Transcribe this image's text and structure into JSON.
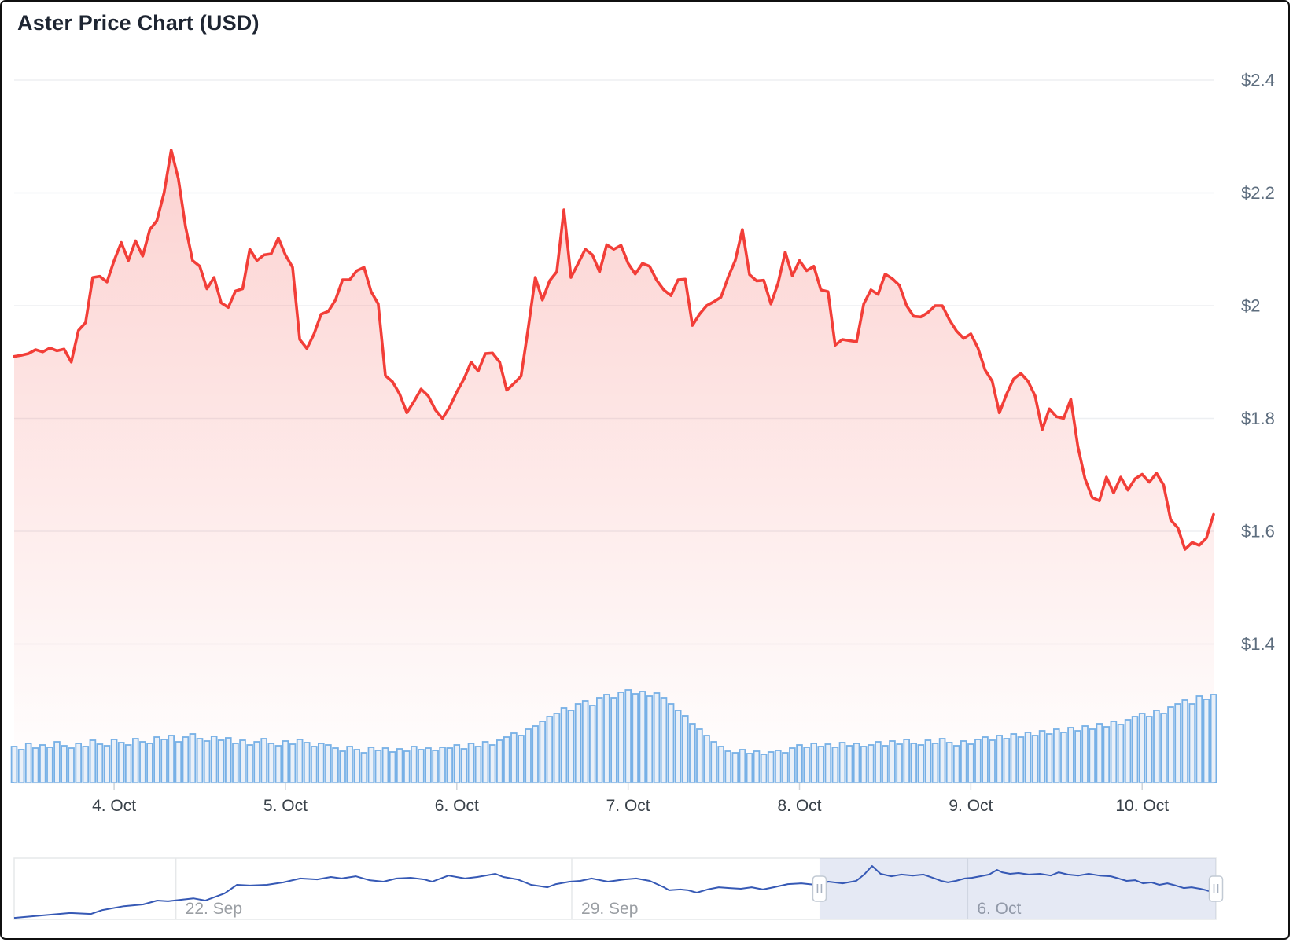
{
  "title": "Aster Price Chart (USD)",
  "colors": {
    "title_color": "#1e2532",
    "price_line": "#f23e38",
    "price_fill_top": "rgba(242,62,56,0.26)",
    "price_fill_bottom": "rgba(242,62,56,0)",
    "grid": "#edeff2",
    "axis_line": "#e7e9eb",
    "tick_mark": "#ced3d8",
    "x_label": "#394149",
    "y_label": "#5d6d7e",
    "volume_stroke": "#77b0e6",
    "volume_fill": "#eaf0f8",
    "nav_line": "#3659b5",
    "nav_mask": "rgba(101,125,189,0.17)",
    "nav_outline": "#e6e8ea",
    "nav_label": "#9b9fa4",
    "handle_bg": "#ffffff",
    "handle_border": "#c2cad4",
    "handle_glyph": "#a6b0bf"
  },
  "chart_data": [
    {
      "type": "area",
      "name": "aster-price-usd",
      "x_unit": "hour",
      "ylim": [
        1.4,
        2.4
      ],
      "y_ticks": [
        {
          "value": 2.4,
          "label": "$2.4"
        },
        {
          "value": 2.2,
          "label": "$2.2"
        },
        {
          "value": 2.0,
          "label": "$2"
        },
        {
          "value": 1.8,
          "label": "$1.8"
        },
        {
          "value": 1.6,
          "label": "$1.6"
        },
        {
          "value": 1.4,
          "label": "$1.4"
        }
      ],
      "x_ticks": [
        {
          "hour": 14,
          "label": "4. Oct"
        },
        {
          "hour": 38,
          "label": "5. Oct"
        },
        {
          "hour": 62,
          "label": "6. Oct"
        },
        {
          "hour": 86,
          "label": "7. Oct"
        },
        {
          "hour": 110,
          "label": "8. Oct"
        },
        {
          "hour": 134,
          "label": "9. Oct"
        },
        {
          "hour": 158,
          "label": "10. Oct"
        }
      ],
      "values": [
        1.91,
        1.912,
        1.915,
        1.922,
        1.918,
        1.925,
        1.92,
        1.923,
        1.9,
        1.956,
        1.97,
        2.05,
        2.052,
        2.042,
        2.08,
        2.112,
        2.08,
        2.115,
        2.088,
        2.135,
        2.151,
        2.2,
        2.276,
        2.225,
        2.14,
        2.08,
        2.07,
        2.03,
        2.05,
        2.005,
        1.997,
        2.026,
        2.03,
        2.1,
        2.08,
        2.09,
        2.092,
        2.12,
        2.09,
        2.068,
        1.94,
        1.924,
        1.95,
        1.985,
        1.99,
        2.01,
        2.046,
        2.046,
        2.062,
        2.068,
        2.025,
        2.003,
        1.876,
        1.865,
        1.843,
        1.81,
        1.83,
        1.852,
        1.84,
        1.815,
        1.8,
        1.82,
        1.847,
        1.87,
        1.9,
        1.884,
        1.915,
        1.916,
        1.9,
        1.85,
        1.862,
        1.875,
        1.96,
        2.05,
        2.01,
        2.044,
        2.06,
        2.17,
        2.05,
        2.075,
        2.1,
        2.09,
        2.06,
        2.108,
        2.1,
        2.107,
        2.075,
        2.056,
        2.075,
        2.07,
        2.045,
        2.028,
        2.018,
        2.046,
        2.047,
        1.965,
        1.985,
        2.0,
        2.007,
        2.015,
        2.05,
        2.08,
        2.135,
        2.055,
        2.044,
        2.045,
        2.003,
        2.04,
        2.095,
        2.053,
        2.08,
        2.062,
        2.07,
        2.028,
        2.025,
        1.93,
        1.94,
        1.938,
        1.936,
        2.003,
        2.028,
        2.02,
        2.056,
        2.048,
        2.036,
        2.0,
        1.981,
        1.98,
        1.988,
        2.0,
        2.0,
        1.975,
        1.955,
        1.942,
        1.95,
        1.925,
        1.886,
        1.866,
        1.81,
        1.843,
        1.87,
        1.88,
        1.866,
        1.84,
        1.78,
        1.817,
        1.803,
        1.8,
        1.834,
        1.75,
        1.693,
        1.66,
        1.654,
        1.696,
        1.668,
        1.696,
        1.673,
        1.693,
        1.701,
        1.687,
        1.703,
        1.682,
        1.62,
        1.606,
        1.568,
        1.58,
        1.575,
        1.588,
        1.63
      ]
    },
    {
      "type": "bar",
      "name": "aster-volume",
      "note": "relative bar heights, same hourly x positions as price series",
      "heights": [
        46,
        42,
        50,
        44,
        48,
        45,
        52,
        47,
        44,
        50,
        46,
        54,
        49,
        47,
        55,
        51,
        48,
        56,
        52,
        50,
        58,
        55,
        60,
        52,
        58,
        62,
        56,
        53,
        59,
        54,
        57,
        50,
        54,
        48,
        52,
        56,
        50,
        47,
        53,
        49,
        55,
        51,
        46,
        50,
        48,
        44,
        40,
        46,
        42,
        38,
        45,
        41,
        44,
        39,
        43,
        40,
        46,
        42,
        44,
        41,
        45,
        44,
        48,
        43,
        50,
        46,
        52,
        48,
        54,
        58,
        63,
        60,
        68,
        72,
        78,
        84,
        88,
        95,
        92,
        100,
        104,
        98,
        108,
        112,
        108,
        115,
        118,
        113,
        116,
        110,
        114,
        108,
        100,
        92,
        85,
        75,
        68,
        60,
        52,
        46,
        40,
        38,
        42,
        37,
        40,
        36,
        39,
        41,
        38,
        44,
        48,
        45,
        50,
        46,
        49,
        45,
        51,
        47,
        50,
        46,
        48,
        52,
        47,
        53,
        49,
        55,
        50,
        48,
        54,
        50,
        56,
        51,
        47,
        53,
        49,
        55,
        58,
        54,
        60,
        56,
        62,
        58,
        64,
        60,
        66,
        62,
        68,
        64,
        70,
        66,
        72,
        68,
        75,
        71,
        78,
        74,
        80,
        84,
        88,
        84,
        92,
        88,
        96,
        100,
        105,
        100,
        110,
        106,
        112
      ]
    },
    {
      "type": "line",
      "name": "navigator-series",
      "x_unit": "day",
      "ylim": [
        0.1,
        2.6
      ],
      "ticks": [
        {
          "t": 2.86,
          "label": "22. Sep"
        },
        {
          "t": 9.86,
          "label": "29. Sep"
        },
        {
          "t": 16.86,
          "label": "6. Oct"
        }
      ],
      "selected_from_t": 14.24,
      "selected_to_t": 21.25,
      "span_days": 21.25,
      "series": [
        [
          0,
          0.16
        ],
        [
          0.49,
          0.26
        ],
        [
          0.99,
          0.36
        ],
        [
          1.36,
          0.32
        ],
        [
          1.56,
          0.48
        ],
        [
          1.94,
          0.64
        ],
        [
          2.28,
          0.71
        ],
        [
          2.53,
          0.87
        ],
        [
          2.72,
          0.84
        ],
        [
          3.17,
          0.96
        ],
        [
          3.38,
          0.87
        ],
        [
          3.72,
          1.16
        ],
        [
          3.94,
          1.51
        ],
        [
          4.17,
          1.48
        ],
        [
          4.47,
          1.51
        ],
        [
          4.76,
          1.61
        ],
        [
          5.06,
          1.77
        ],
        [
          5.36,
          1.73
        ],
        [
          5.6,
          1.83
        ],
        [
          5.79,
          1.77
        ],
        [
          6.04,
          1.86
        ],
        [
          6.28,
          1.7
        ],
        [
          6.53,
          1.64
        ],
        [
          6.76,
          1.77
        ],
        [
          7.01,
          1.8
        ],
        [
          7.25,
          1.73
        ],
        [
          7.39,
          1.64
        ],
        [
          7.68,
          1.89
        ],
        [
          7.97,
          1.77
        ],
        [
          8.19,
          1.83
        ],
        [
          8.51,
          1.96
        ],
        [
          8.65,
          1.83
        ],
        [
          8.9,
          1.73
        ],
        [
          9.14,
          1.51
        ],
        [
          9.43,
          1.41
        ],
        [
          9.58,
          1.54
        ],
        [
          9.82,
          1.64
        ],
        [
          10.01,
          1.67
        ],
        [
          10.21,
          1.77
        ],
        [
          10.5,
          1.64
        ],
        [
          10.79,
          1.73
        ],
        [
          11.0,
          1.77
        ],
        [
          11.24,
          1.67
        ],
        [
          11.49,
          1.41
        ],
        [
          11.58,
          1.29
        ],
        [
          11.78,
          1.32
        ],
        [
          11.92,
          1.29
        ],
        [
          12.07,
          1.19
        ],
        [
          12.26,
          1.32
        ],
        [
          12.46,
          1.41
        ],
        [
          12.65,
          1.38
        ],
        [
          12.85,
          1.35
        ],
        [
          13.04,
          1.41
        ],
        [
          13.24,
          1.32
        ],
        [
          13.43,
          1.41
        ],
        [
          13.68,
          1.54
        ],
        [
          13.92,
          1.57
        ],
        [
          14.17,
          1.51
        ],
        [
          14.4,
          1.64
        ],
        [
          14.65,
          1.57
        ],
        [
          14.89,
          1.67
        ],
        [
          15.03,
          1.93
        ],
        [
          15.17,
          2.28
        ],
        [
          15.32,
          1.96
        ],
        [
          15.51,
          1.86
        ],
        [
          15.69,
          1.93
        ],
        [
          15.89,
          1.89
        ],
        [
          16.08,
          1.93
        ],
        [
          16.28,
          1.77
        ],
        [
          16.39,
          1.67
        ],
        [
          16.51,
          1.61
        ],
        [
          16.65,
          1.67
        ],
        [
          16.81,
          1.77
        ],
        [
          16.94,
          1.8
        ],
        [
          17.08,
          1.86
        ],
        [
          17.24,
          1.93
        ],
        [
          17.38,
          2.12
        ],
        [
          17.47,
          2.02
        ],
        [
          17.61,
          1.96
        ],
        [
          17.76,
          1.99
        ],
        [
          17.94,
          1.93
        ],
        [
          18.14,
          1.96
        ],
        [
          18.33,
          1.89
        ],
        [
          18.47,
          2.02
        ],
        [
          18.63,
          1.93
        ],
        [
          18.82,
          1.89
        ],
        [
          19.0,
          1.96
        ],
        [
          19.19,
          1.89
        ],
        [
          19.39,
          1.86
        ],
        [
          19.53,
          1.77
        ],
        [
          19.67,
          1.67
        ],
        [
          19.82,
          1.7
        ],
        [
          19.96,
          1.57
        ],
        [
          20.11,
          1.61
        ],
        [
          20.25,
          1.51
        ],
        [
          20.39,
          1.57
        ],
        [
          20.54,
          1.48
        ],
        [
          20.68,
          1.38
        ],
        [
          20.82,
          1.41
        ],
        [
          20.97,
          1.35
        ],
        [
          21.08,
          1.29
        ],
        [
          21.21,
          1.19
        ]
      ]
    }
  ]
}
